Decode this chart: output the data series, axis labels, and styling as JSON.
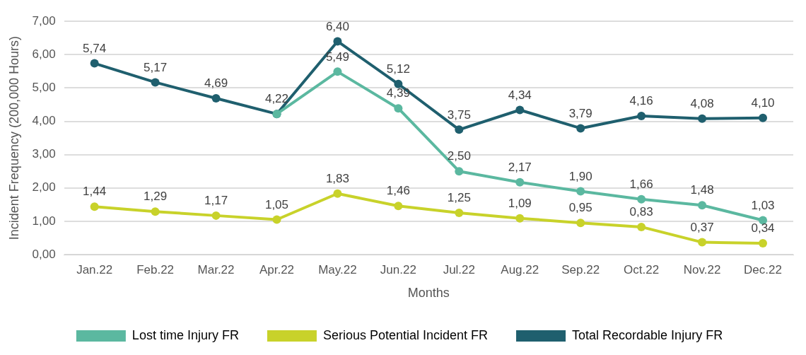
{
  "chart_data": {
    "type": "line",
    "xlabel": "Months",
    "ylabel": "Incident Frequency (200,000 Hours)",
    "categories": [
      "Jan.22",
      "Feb.22",
      "Mar.22",
      "Apr.22",
      "May.22",
      "Jun.22",
      "Jul.22",
      "Aug.22",
      "Sep.22",
      "Oct.22",
      "Nov.22",
      "Dec.22"
    ],
    "series": [
      {
        "name": "Lost time Injury FR",
        "color": "#5bb8a0",
        "values": [
          null,
          null,
          null,
          4.22,
          5.49,
          4.39,
          2.5,
          2.17,
          1.9,
          1.66,
          1.48,
          1.03
        ],
        "value_labels": [
          null,
          null,
          null,
          null,
          "5,49",
          "4,39",
          "2,50",
          "2,17",
          "1,90",
          "1,66",
          "1,48",
          "1,03"
        ]
      },
      {
        "name": "Serious Potential Incident FR",
        "color": "#c8d22a",
        "values": [
          1.44,
          1.29,
          1.17,
          1.05,
          1.83,
          1.46,
          1.25,
          1.09,
          0.95,
          0.83,
          0.37,
          0.34
        ],
        "value_labels": [
          "1,44",
          "1,29",
          "1,17",
          "1,05",
          "1,83",
          "1,46",
          "1,25",
          "1,09",
          "0,95",
          "0,83",
          "0,37",
          "0,34"
        ]
      },
      {
        "name": "Total Recordable Injury FR",
        "color": "#1f5f6e",
        "values": [
          5.74,
          5.17,
          4.69,
          4.22,
          6.4,
          5.12,
          3.75,
          4.34,
          3.79,
          4.16,
          4.08,
          4.1
        ],
        "value_labels": [
          "5,74",
          "5,17",
          "4,69",
          "4,22",
          "6,40",
          "5,12",
          "3,75",
          "4,34",
          "3,79",
          "4,16",
          "4,08",
          "4,10"
        ]
      }
    ],
    "ylim": [
      0,
      7
    ],
    "yticks": [
      {
        "value": 0,
        "label": "0,00"
      },
      {
        "value": 1,
        "label": "1,00"
      },
      {
        "value": 2,
        "label": "2,00"
      },
      {
        "value": 3,
        "label": "3,00"
      },
      {
        "value": 4,
        "label": "4,00"
      },
      {
        "value": 5,
        "label": "5,00"
      },
      {
        "value": 6,
        "label": "6,00"
      },
      {
        "value": 7,
        "label": "7,00"
      }
    ],
    "grid": "y",
    "legend": "bottom",
    "marker": "circle",
    "line_style": "solid"
  }
}
